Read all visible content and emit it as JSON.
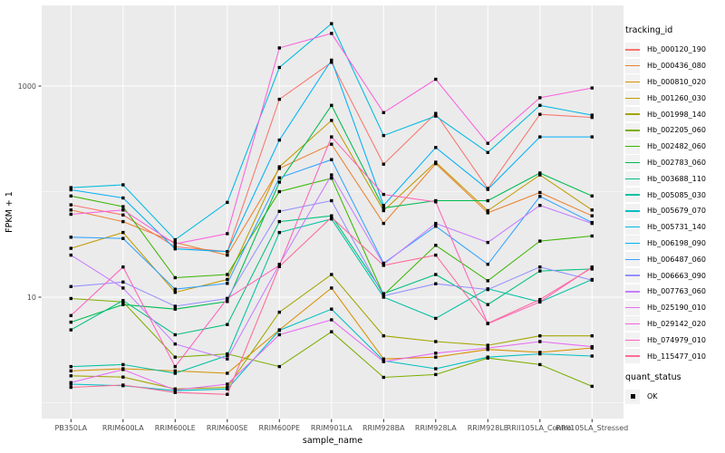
{
  "chart_data": {
    "type": "line",
    "title": "",
    "xlabel": "sample_name",
    "ylabel": "FPKM + 1",
    "y_scale": "log10",
    "y_tick_values": [
      10,
      1000
    ],
    "y_minor_values": [
      1,
      100
    ],
    "ylim_shown": [
      0.7,
      5000
    ],
    "grid": "on",
    "panel_color": "#EBEBEB",
    "grid_color": "#FFFFFF",
    "point_color": "#000000",
    "categories": [
      "PB350LA",
      "RRIM600LA",
      "RRIM600LE",
      "RRIM600SE",
      "RRIM600PE",
      "RRIM901LA",
      "RRIM928BA",
      "RRIM928LA",
      "RRIM928LE",
      "RRII105LA_Control",
      "RRII105LA_Stressed"
    ],
    "legend": {
      "title": "tracking_id",
      "position": "right"
    },
    "quant_status": {
      "title": "quant_status",
      "items": [
        {
          "label": "OK",
          "marker": "black-square"
        }
      ]
    },
    "series": [
      {
        "name": "Hb_000120_190",
        "color": "#F8766D",
        "values": [
          75,
          60,
          30,
          27,
          750,
          1680,
          182,
          550,
          107,
          540,
          505
        ]
      },
      {
        "name": "Hb_000436_080",
        "color": "#EA8331",
        "values": [
          67,
          52,
          33,
          25,
          166,
          281,
          50,
          184,
          63,
          98,
          59
        ]
      },
      {
        "name": "Hb_000810_020",
        "color": "#D89000",
        "values": [
          2.0,
          2.1,
          2.0,
          1.9,
          4.9,
          12.2,
          2.6,
          2.7,
          3.2,
          3.0,
          3.3
        ]
      },
      {
        "name": "Hb_001260_030",
        "color": "#C09B00",
        "values": [
          29,
          41,
          11.1,
          14.7,
          172,
          473,
          66,
          190,
          66,
          144,
          67
        ]
      },
      {
        "name": "Hb_001998_140",
        "color": "#A3A500",
        "values": [
          1.8,
          1.75,
          1.35,
          1.4,
          7.2,
          16.4,
          4.3,
          3.8,
          3.5,
          4.3,
          4.3
        ]
      },
      {
        "name": "Hb_002205_060",
        "color": "#7CAE00",
        "values": [
          9.7,
          9.0,
          2.7,
          2.9,
          2.2,
          4.7,
          1.74,
          1.85,
          2.65,
          2.3,
          1.43
        ]
      },
      {
        "name": "Hb_002482_060",
        "color": "#39B600",
        "values": [
          91,
          72,
          15.3,
          16.4,
          100,
          134,
          10.5,
          31,
          14.3,
          34,
          38
        ]
      },
      {
        "name": "Hb_002783_060",
        "color": "#00BB4E",
        "values": [
          5.8,
          8.5,
          7.7,
          9.1,
          123,
          657,
          70,
          82,
          82,
          150,
          91
        ]
      },
      {
        "name": "Hb_003688_110",
        "color": "#00BF7D",
        "values": [
          4.9,
          9.3,
          4.4,
          5.5,
          52,
          59,
          10.8,
          16.4,
          8.5,
          17.7,
          18.5
        ]
      },
      {
        "name": "Hb_005085_030",
        "color": "#00C1A3",
        "values": [
          2.2,
          2.3,
          1.9,
          2.8,
          41,
          55,
          10.0,
          6.3,
          12,
          9.0,
          14.7
        ]
      },
      {
        "name": "Hb_005679_070",
        "color": "#00BFC4",
        "values": [
          1.5,
          1.45,
          1.3,
          1.35,
          4.85,
          7.7,
          2.5,
          2.1,
          2.7,
          2.9,
          2.77
        ]
      },
      {
        "name": "Hb_005731_140",
        "color": "#00BAE0",
        "values": [
          109,
          116,
          35,
          79,
          1500,
          3900,
          340,
          520,
          235,
          657,
          530
        ]
      },
      {
        "name": "Hb_006198_090",
        "color": "#00B0F6",
        "values": [
          104,
          87,
          28.7,
          27,
          308,
          1760,
          74,
          262,
          105,
          330,
          330
        ]
      },
      {
        "name": "Hb_006487_060",
        "color": "#35A2FF",
        "values": [
          37,
          36,
          11.9,
          13.5,
          135,
          201,
          21,
          47,
          20.5,
          90,
          51
        ]
      },
      {
        "name": "Hb_006663_090",
        "color": "#9590FF",
        "values": [
          12.6,
          13.9,
          8.2,
          9.7,
          65,
          82,
          10.3,
          13.4,
          11.8,
          19.3,
          14.5
        ]
      },
      {
        "name": "Hb_007763_060",
        "color": "#C77CFF",
        "values": [
          25,
          12.2,
          3.6,
          2.6,
          20.5,
          144,
          20.5,
          50,
          33,
          74,
          50
        ]
      },
      {
        "name": "Hb_025190_010",
        "color": "#E76BF3",
        "values": [
          1.55,
          2.06,
          1.32,
          1.5,
          4.4,
          6.1,
          2.45,
          2.95,
          3.3,
          3.8,
          3.4
        ]
      },
      {
        "name": "Hb_029142_020",
        "color": "#FA62DB",
        "values": [
          61,
          67,
          32,
          40,
          2300,
          3150,
          560,
          1160,
          287,
          775,
          960
        ]
      },
      {
        "name": "Hb_074979_010",
        "color": "#FF62BC",
        "values": [
          6.7,
          19.3,
          2.2,
          9.7,
          20,
          330,
          94,
          80,
          5.6,
          9.0,
          19.3
        ]
      },
      {
        "name": "Hb_115477_010",
        "color": "#FF6A98",
        "values": [
          1.4,
          1.47,
          1.25,
          1.2,
          19.5,
          57,
          20,
          25,
          5.65,
          9.5,
          19
        ]
      }
    ]
  }
}
